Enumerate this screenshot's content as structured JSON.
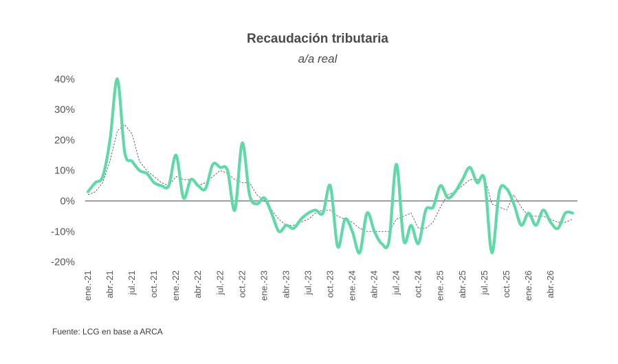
{
  "chart_data": {
    "type": "line",
    "title": "Recaudación tributaria",
    "subtitle": "a/a real",
    "source": "Fuente: LCG  en base a ARCA",
    "y_ticks": [
      "40%",
      "30%",
      "20%",
      "10%",
      "0%",
      "-10%",
      "-20%"
    ],
    "y_tick_values": [
      40,
      30,
      20,
      10,
      0,
      -10,
      -20
    ],
    "ylim": [
      -20,
      40
    ],
    "x_tick_labels": [
      "ene.-21",
      "abr.-21",
      "jul.-21",
      "oct.-21",
      "ene.-22",
      "abr.-22",
      "jul.-22",
      "oct.-22",
      "ene.-23",
      "abr.-23",
      "jul.-23",
      "oct.-23",
      "ene.-24",
      "abr.-24",
      "jul.-24",
      "oct.-24",
      "ene.-25",
      "abr.-25",
      "jul.-25",
      "oct.-25",
      "ene.-26",
      "abr.-26"
    ],
    "colors": {
      "main": "#5fd9a6",
      "trend": "#555555",
      "zero_line": "#666666"
    },
    "series": [
      {
        "style": "thick-solid",
        "values": [
          3,
          6,
          8,
          20,
          40,
          16,
          13,
          10,
          9,
          6,
          5,
          5,
          15,
          1,
          7,
          5,
          4,
          12,
          11,
          10,
          -3,
          19,
          2,
          -1,
          1,
          -4,
          -10,
          -8,
          -9,
          -6,
          -4,
          -3,
          -4,
          5,
          -15,
          -6,
          -10,
          -17,
          -4,
          -10,
          -14,
          -13,
          12,
          -13,
          -8,
          -14,
          -3,
          -2,
          5,
          1,
          3,
          7,
          11,
          6,
          7,
          -17,
          3,
          4,
          -1,
          -8,
          -4,
          -8,
          -3,
          -7,
          -9,
          -4,
          -4
        ],
        "markers": false
      },
      {
        "style": "thin-dashed",
        "values": [
          2,
          3,
          6,
          13,
          23,
          25,
          22,
          13,
          10,
          8,
          6,
          5,
          8,
          7,
          7,
          5,
          6,
          8,
          10,
          9,
          7,
          6,
          6,
          2,
          0,
          -3,
          -6,
          -8,
          -8,
          -7,
          -6,
          -4,
          -3,
          -3,
          -5,
          -6,
          -7,
          -9,
          -10,
          -10,
          -10,
          -10,
          -6,
          -5,
          -4,
          -9,
          -9,
          -7,
          -2,
          2,
          3,
          5,
          7,
          7,
          8,
          -1,
          -2,
          -3,
          2,
          -2,
          -5,
          -5,
          -5,
          -6,
          -7,
          -7,
          -6
        ]
      }
    ]
  }
}
